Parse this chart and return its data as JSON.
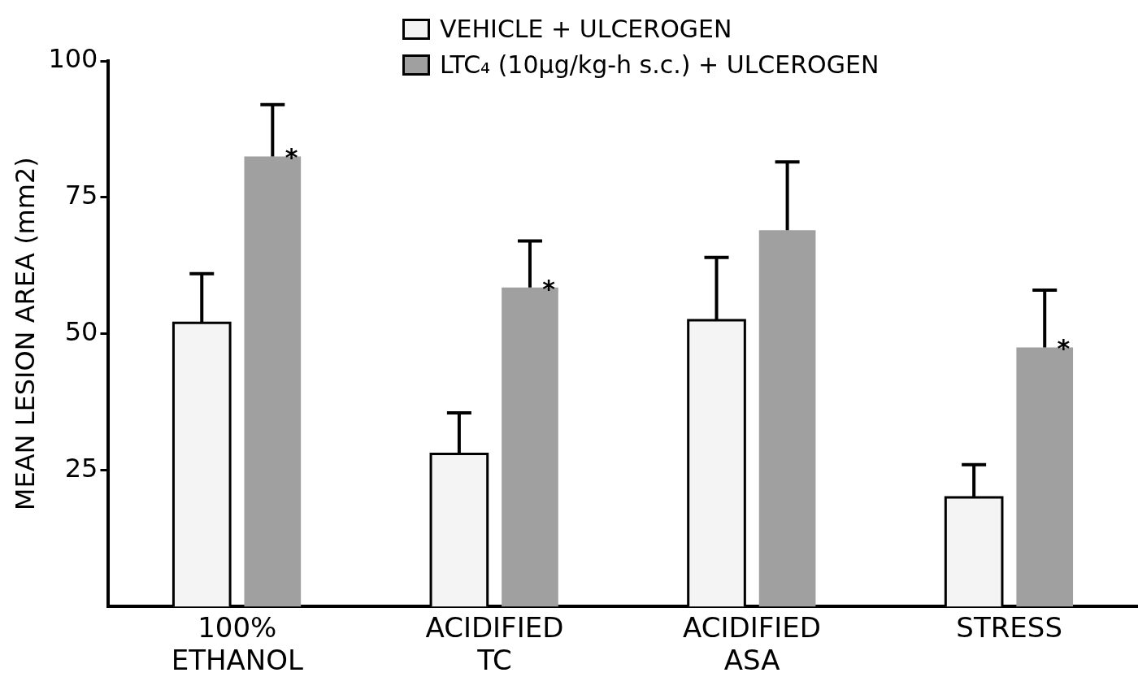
{
  "chart_data": {
    "type": "bar",
    "ylabel": "MEAN LESION AREA (mm2)",
    "categories": [
      "100% ETHANOL",
      "ACIDIFIED TC",
      "ACIDIFIED ASA",
      "STRESS"
    ],
    "series": [
      {
        "name": "VEHICLE + ULCEROGEN",
        "color": "#f4f4f4",
        "values": [
          52,
          28,
          52.5,
          20
        ],
        "errors": [
          [
            52,
            61
          ],
          [
            28,
            35.5
          ],
          [
            52.5,
            64
          ],
          [
            20,
            26
          ]
        ]
      },
      {
        "name": "LTC₄ (10µg/kg-h s.c.) + ULCEROGEN",
        "color": "#a0a0a0",
        "values": [
          82.5,
          58.5,
          69,
          47.5
        ],
        "value_labels": [
          "*",
          "*",
          null,
          "*"
        ],
        "errors": [
          [
            82.5,
            92
          ],
          [
            58.5,
            67
          ],
          [
            69,
            81.5
          ],
          [
            47.5,
            58
          ]
        ]
      }
    ],
    "ylim": [
      0,
      100
    ],
    "yticks": [
      25,
      50,
      75,
      100
    ],
    "grid": false,
    "legend": "top"
  }
}
